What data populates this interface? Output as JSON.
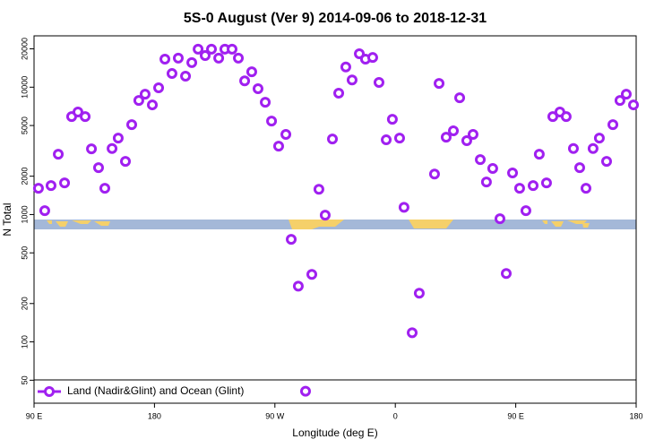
{
  "chart_data": {
    "type": "scatter",
    "title": "5S-0 August (Ver 9)   2014-09-06 to 2018-12-31",
    "x_label": "Longitude (deg E)",
    "y_label": "N Total",
    "log_y": true,
    "xlim": [
      90,
      540
    ],
    "xticks": [
      {
        "value": 90,
        "label": "90 E"
      },
      180,
      {
        "value": 270,
        "label": "90 W"
      },
      {
        "value": 360,
        "label": "0"
      },
      {
        "value": 450,
        "label": "90 E"
      },
      {
        "value": 540,
        "label": "180"
      }
    ],
    "ylim": [
      33,
      25300
    ],
    "yticks": [
      50,
      100,
      200,
      500,
      1000,
      2000,
      5000,
      10000,
      20000
    ],
    "legend": "bottom left",
    "series": [
      {
        "name": "Land (Nadir&Glint) and Ocean (Glint)",
        "color": "#a020f0",
        "x": [
          93.3,
          98.0,
          102.7,
          108.1,
          112.8,
          118.1,
          122.8,
          128.2,
          132.9,
          138.2,
          142.9,
          148.3,
          152.9,
          158.3,
          163.0,
          168.3,
          173.0,
          178.4,
          183.1,
          187.8,
          193.1,
          197.8,
          203.2,
          207.9,
          212.6,
          217.9,
          222.6,
          228.0,
          232.6,
          238.0,
          242.7,
          247.4,
          252.7,
          257.4,
          262.8,
          267.5,
          272.8,
          278.2,
          282.2,
          287.5,
          292.9,
          297.6,
          302.9,
          307.6,
          313.0,
          317.7,
          323.0,
          327.7,
          333.1,
          337.7,
          343.1,
          347.8,
          353.2,
          357.8,
          363.2,
          366.5,
          372.6,
          377.9,
          389.3,
          392.7,
          398.0,
          403.4,
          408.1,
          413.4,
          418.1,
          423.5,
          428.1,
          432.8,
          438.2,
          442.9,
          447.6,
          452.9,
          457.6,
          463.0,
          467.6,
          473.0,
          477.7,
          483.0,
          487.7,
          493.1,
          497.8,
          502.5,
          507.8,
          512.5,
          517.9,
          522.6,
          527.9,
          532.6,
          538.0
        ],
        "values": [
          1607,
          1072,
          1688,
          2976,
          1772,
          5880,
          6380,
          5880,
          3280,
          2335,
          1607,
          3300,
          3980,
          2615,
          5080,
          7870,
          8810,
          7260,
          9880,
          16600,
          12800,
          16900,
          12200,
          15600,
          19900,
          17700,
          19900,
          16900,
          19900,
          19900,
          16900,
          11200,
          13200,
          9720,
          7620,
          5420,
          3440,
          4260,
          638,
          274,
          41,
          339,
          1580,
          988,
          3920,
          8970,
          14400,
          11400,
          18300,
          16600,
          17100,
          10900,
          3860,
          5600,
          3980,
          1140,
          118,
          241,
          2080,
          10700,
          4050,
          4540,
          8260,
          3800,
          4260,
          2700,
          1800,
          2300,
          926,
          344,
          2120,
          1607,
          1072,
          1688,
          2976,
          1772,
          5880,
          6380,
          5880,
          3300,
          2335,
          1607,
          3300,
          3980,
          2615,
          5080,
          7870,
          8810,
          7260
        ]
      }
    ]
  }
}
